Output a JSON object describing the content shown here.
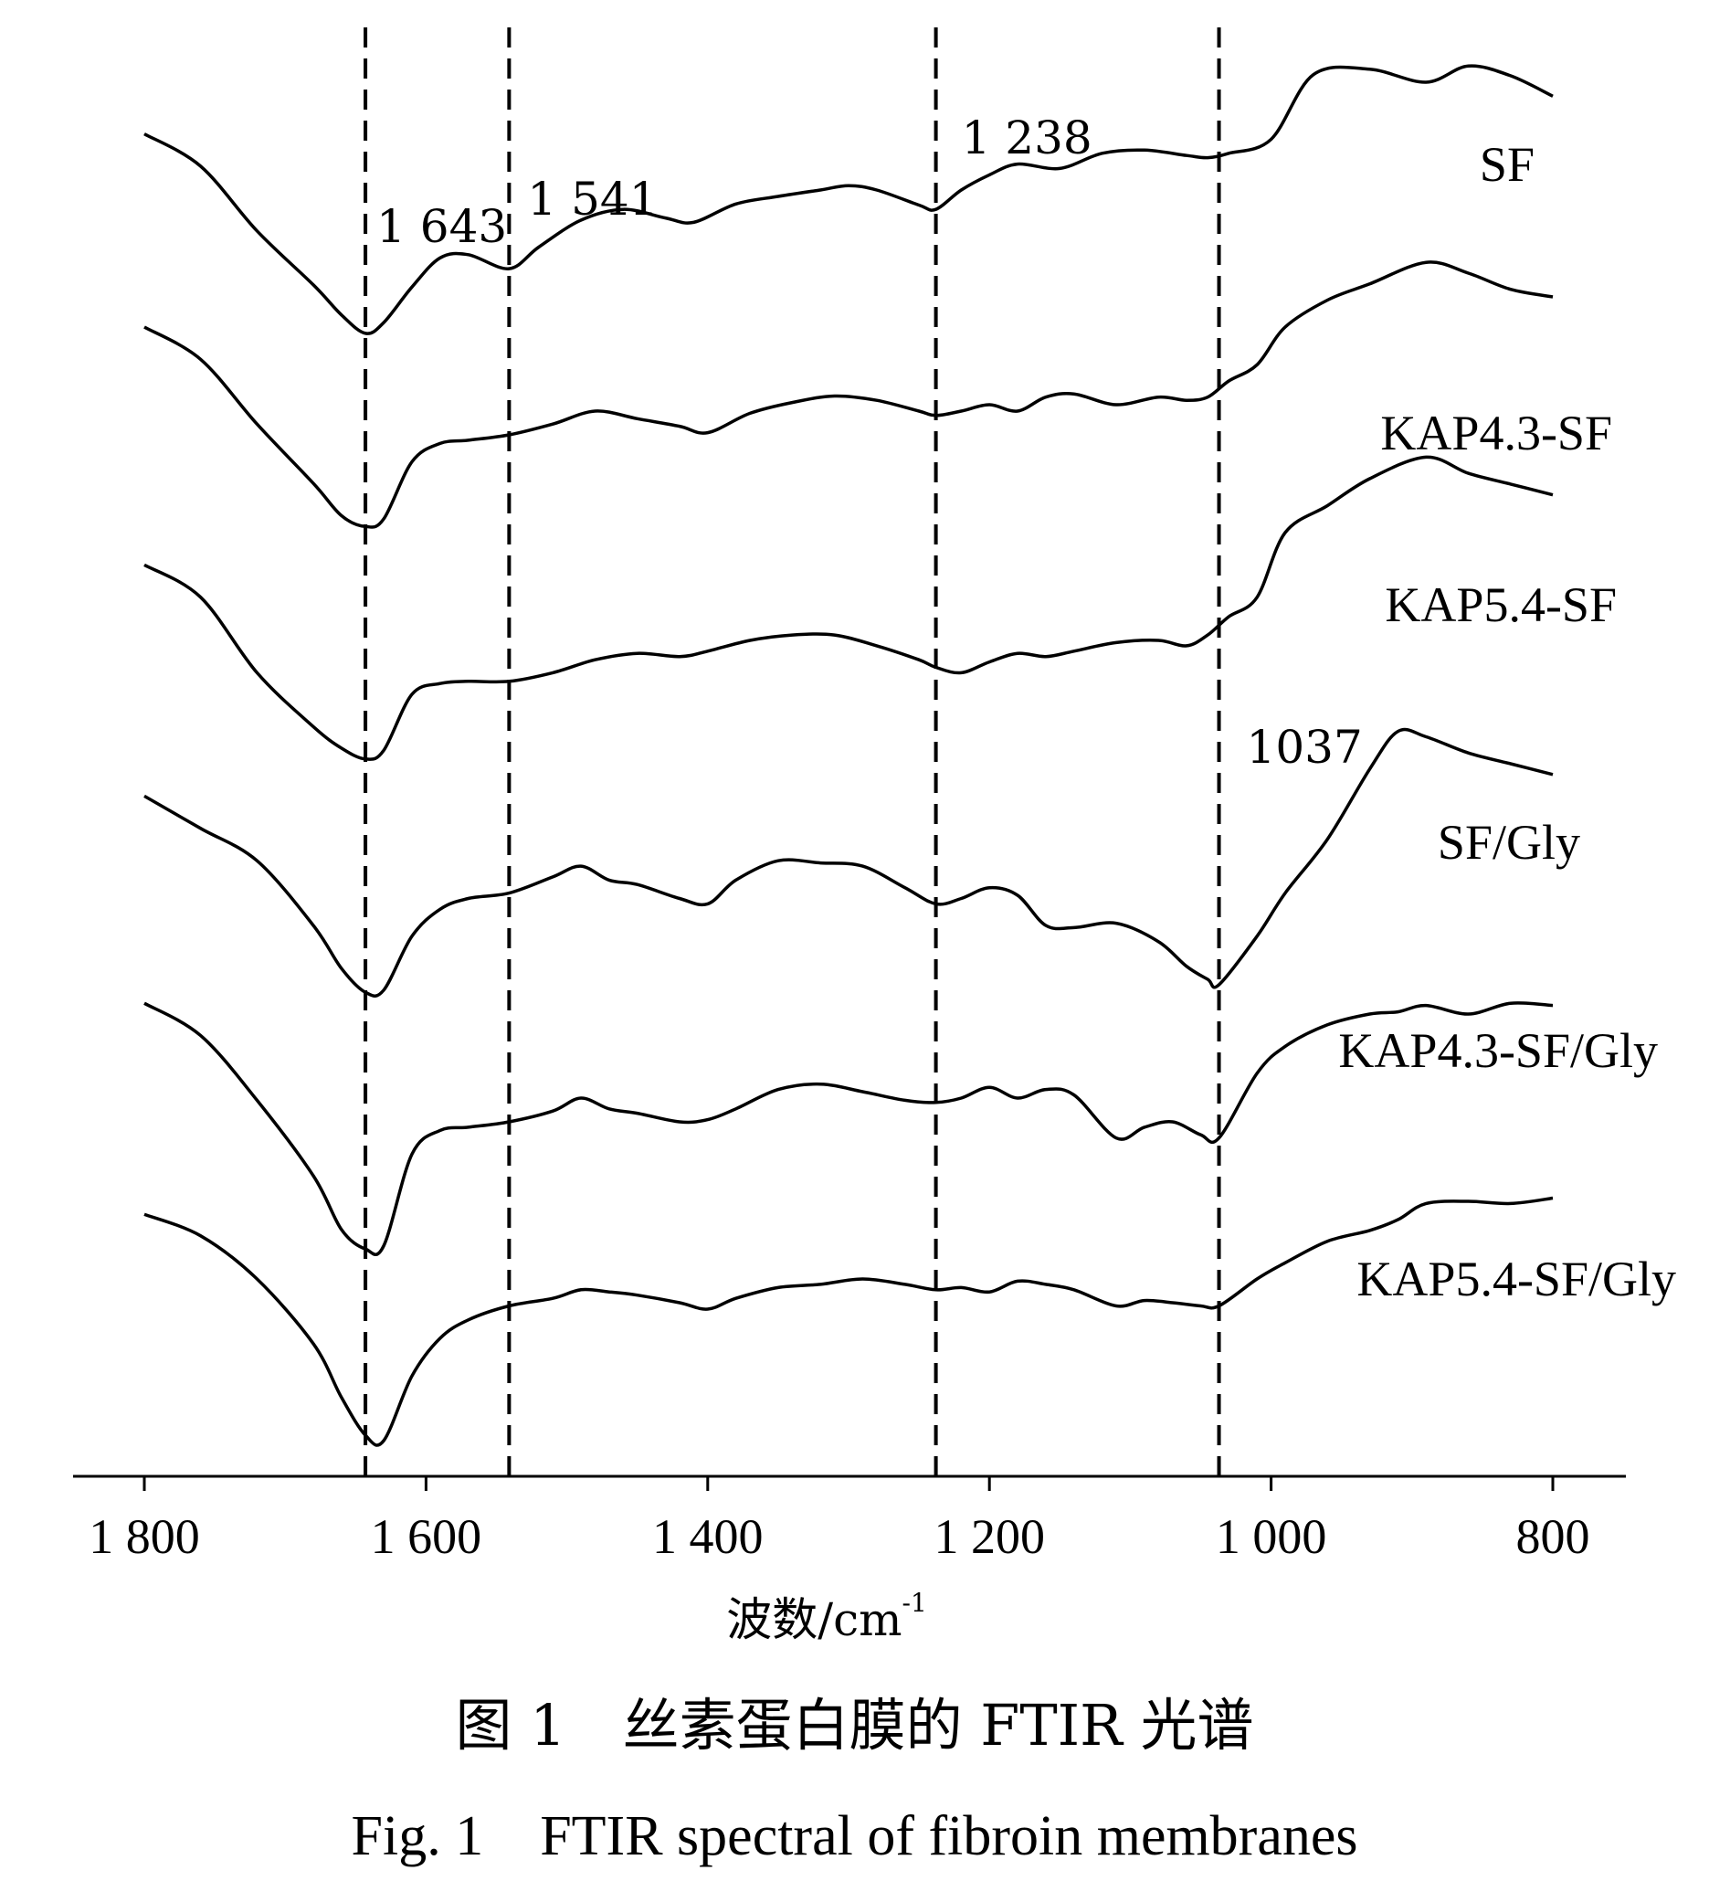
{
  "caption_cn": "图 1　丝素蛋白膜的 FTIR 光谱",
  "caption_en": "Fig. 1　FTIR spectral of fibroin membranes",
  "chart_data": {
    "type": "line",
    "xlabel": "波数/cm",
    "xlabel_sup": "-1",
    "xlim": [
      1800,
      800
    ],
    "x_reversed": true,
    "xticks": [
      {
        "value": 1800,
        "label": "1 800"
      },
      {
        "value": 1600,
        "label": "1 600"
      },
      {
        "value": 1400,
        "label": "1 400"
      },
      {
        "value": 1200,
        "label": "1 200"
      },
      {
        "value": 1000,
        "label": "1 000"
      },
      {
        "value": 800,
        "label": "800"
      }
    ],
    "ylabel": "",
    "yticks": [],
    "grid": false,
    "legend": "inline",
    "reference_lines": [
      {
        "x": 1643,
        "label": "1 643"
      },
      {
        "x": 1541,
        "label": "1 541"
      },
      {
        "x": 1238,
        "label": "1 238"
      },
      {
        "x": 1037,
        "label": "1037"
      }
    ],
    "series": [
      {
        "name": "SF",
        "x": [
          1800,
          1760,
          1720,
          1680,
          1660,
          1643,
          1630,
          1610,
          1590,
          1570,
          1541,
          1520,
          1490,
          1460,
          1430,
          1410,
          1380,
          1350,
          1320,
          1300,
          1280,
          1250,
          1238,
          1220,
          1200,
          1180,
          1150,
          1120,
          1090,
          1060,
          1045,
          1030,
          1000,
          970,
          930,
          890,
          860,
          830,
          800
        ],
        "y": [
          1.3,
          1.0,
          0.4,
          -0.1,
          -0.38,
          -0.55,
          -0.45,
          -0.12,
          0.15,
          0.18,
          0.05,
          0.25,
          0.5,
          0.6,
          0.52,
          0.48,
          0.65,
          0.72,
          0.78,
          0.82,
          0.78,
          0.64,
          0.6,
          0.78,
          0.92,
          1.02,
          0.98,
          1.12,
          1.15,
          1.1,
          1.08,
          1.12,
          1.25,
          1.85,
          1.9,
          1.78,
          1.93,
          1.84,
          1.65
        ]
      },
      {
        "name": "KAP4.3-SF",
        "x": [
          1800,
          1760,
          1720,
          1680,
          1660,
          1643,
          1630,
          1610,
          1590,
          1570,
          1541,
          1510,
          1480,
          1450,
          1420,
          1400,
          1370,
          1340,
          1310,
          1280,
          1250,
          1238,
          1220,
          1200,
          1180,
          1160,
          1140,
          1110,
          1080,
          1060,
          1045,
          1030,
          1010,
          990,
          960,
          930,
          890,
          860,
          830,
          800
        ],
        "y": [
          1.5,
          1.2,
          0.6,
          0.05,
          -0.25,
          -0.35,
          -0.28,
          0.25,
          0.42,
          0.45,
          0.5,
          0.6,
          0.72,
          0.65,
          0.58,
          0.52,
          0.7,
          0.8,
          0.86,
          0.82,
          0.72,
          0.68,
          0.72,
          0.78,
          0.72,
          0.85,
          0.88,
          0.78,
          0.85,
          0.82,
          0.85,
          1.0,
          1.15,
          1.5,
          1.75,
          1.9,
          2.1,
          2.0,
          1.85,
          1.78
        ]
      },
      {
        "name": "KAP5.4-SF",
        "x": [
          1800,
          1760,
          1720,
          1680,
          1660,
          1643,
          1630,
          1610,
          1590,
          1570,
          1541,
          1510,
          1480,
          1450,
          1420,
          1400,
          1370,
          1340,
          1310,
          1280,
          1250,
          1238,
          1220,
          1200,
          1180,
          1160,
          1140,
          1110,
          1080,
          1060,
          1045,
          1030,
          1010,
          990,
          960,
          930,
          890,
          860,
          830,
          800
        ],
        "y": [
          1.2,
          0.9,
          0.2,
          -0.3,
          -0.5,
          -0.6,
          -0.52,
          0.0,
          0.1,
          0.12,
          0.12,
          0.2,
          0.32,
          0.38,
          0.35,
          0.4,
          0.5,
          0.55,
          0.55,
          0.45,
          0.32,
          0.25,
          0.2,
          0.3,
          0.38,
          0.35,
          0.4,
          0.48,
          0.5,
          0.45,
          0.55,
          0.72,
          0.9,
          1.5,
          1.75,
          2.0,
          2.2,
          2.05,
          1.95,
          1.85
        ]
      },
      {
        "name": "SF/Gly",
        "x": [
          1800,
          1760,
          1720,
          1680,
          1660,
          1643,
          1630,
          1610,
          1590,
          1570,
          1541,
          1510,
          1490,
          1470,
          1450,
          1420,
          1400,
          1380,
          1350,
          1320,
          1290,
          1260,
          1238,
          1220,
          1200,
          1180,
          1160,
          1140,
          1110,
          1080,
          1060,
          1045,
          1037,
          1010,
          990,
          960,
          930,
          910,
          890,
          860,
          830,
          800
        ],
        "y": [
          1.2,
          0.9,
          0.6,
          0.0,
          -0.4,
          -0.62,
          -0.6,
          -0.1,
          0.15,
          0.25,
          0.3,
          0.45,
          0.55,
          0.42,
          0.38,
          0.25,
          0.2,
          0.42,
          0.6,
          0.58,
          0.55,
          0.35,
          0.2,
          0.25,
          0.35,
          0.28,
          0.0,
          -0.02,
          0.02,
          -0.15,
          -0.38,
          -0.5,
          -0.55,
          -0.1,
          0.3,
          0.8,
          1.45,
          1.8,
          1.75,
          1.6,
          1.5,
          1.4
        ]
      },
      {
        "name": "KAP4.3-SF/Gly",
        "x": [
          1800,
          1760,
          1720,
          1680,
          1660,
          1643,
          1630,
          1610,
          1590,
          1570,
          1541,
          1510,
          1490,
          1470,
          1450,
          1420,
          1400,
          1380,
          1350,
          1320,
          1290,
          1260,
          1238,
          1220,
          1200,
          1180,
          1160,
          1140,
          1110,
          1090,
          1070,
          1050,
          1037,
          1010,
          990,
          960,
          930,
          910,
          890,
          860,
          830,
          800
        ],
        "y": [
          1.6,
          1.3,
          0.7,
          0.0,
          -0.5,
          -0.68,
          -0.65,
          0.2,
          0.42,
          0.45,
          0.5,
          0.6,
          0.72,
          0.62,
          0.58,
          0.5,
          0.52,
          0.62,
          0.8,
          0.85,
          0.78,
          0.7,
          0.68,
          0.72,
          0.82,
          0.72,
          0.8,
          0.75,
          0.35,
          0.45,
          0.5,
          0.38,
          0.35,
          0.95,
          1.2,
          1.4,
          1.5,
          1.52,
          1.58,
          1.5,
          1.6,
          1.58
        ]
      },
      {
        "name": "KAP5.4-SF/Gly",
        "x": [
          1800,
          1760,
          1720,
          1680,
          1660,
          1643,
          1630,
          1610,
          1590,
          1570,
          1541,
          1510,
          1490,
          1470,
          1450,
          1420,
          1400,
          1380,
          1350,
          1320,
          1290,
          1260,
          1238,
          1220,
          1200,
          1180,
          1160,
          1140,
          1110,
          1090,
          1070,
          1050,
          1037,
          1010,
          990,
          960,
          930,
          910,
          890,
          860,
          830,
          800
        ],
        "y": [
          1.6,
          1.4,
          1.0,
          0.4,
          -0.1,
          -0.45,
          -0.5,
          0.1,
          0.45,
          0.62,
          0.75,
          0.82,
          0.9,
          0.88,
          0.85,
          0.78,
          0.72,
          0.82,
          0.92,
          0.95,
          1.0,
          0.95,
          0.9,
          0.92,
          0.88,
          0.98,
          0.95,
          0.9,
          0.75,
          0.8,
          0.78,
          0.75,
          0.75,
          1.0,
          1.15,
          1.35,
          1.45,
          1.55,
          1.7,
          1.72,
          1.7,
          1.75
        ]
      }
    ]
  }
}
